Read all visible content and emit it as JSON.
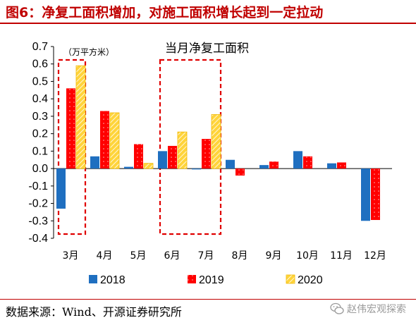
{
  "figure": {
    "title": "图6：净复工面积增加，对施工面积增长起到一定拉动",
    "source": "数据来源：Wind、开源证券研究所",
    "watermark": "赵伟宏观探索",
    "watermark_icon": "wechat-icon"
  },
  "chart_data": {
    "type": "bar",
    "title": "",
    "annotation": "当月净复工面积",
    "unit_label": "（万平方米）",
    "xlabel": "",
    "ylabel": "",
    "categories": [
      "3月",
      "4月",
      "5月",
      "6月",
      "7月",
      "8月",
      "9月",
      "10月",
      "11月",
      "12月"
    ],
    "series": [
      {
        "name": "2018",
        "color": "#1f6fc0",
        "pattern": "solid",
        "values": [
          -0.23,
          0.07,
          0.01,
          0.1,
          -0.005,
          0.05,
          0.02,
          0.1,
          0.03,
          -0.3
        ]
      },
      {
        "name": "2019",
        "color": "#ff0000",
        "pattern": "dotted",
        "values": [
          0.46,
          0.33,
          0.14,
          0.13,
          0.17,
          -0.04,
          0.04,
          0.07,
          0.035,
          -0.295
        ]
      },
      {
        "name": "2020",
        "color": "#ffd43b",
        "pattern": "hatched",
        "values": [
          0.59,
          0.32,
          0.03,
          0.21,
          0.31,
          null,
          null,
          null,
          null,
          null
        ]
      }
    ],
    "ylim": [
      -0.4,
      0.7
    ],
    "yticks": [
      "0.7",
      "0.6",
      "0.5",
      "0.4",
      "0.3",
      "0.2",
      "0.1",
      "0.0",
      "-0.1",
      "-0.2",
      "-0.3",
      "-0.4"
    ],
    "highlight_boxes": [
      {
        "categories": [
          "3月"
        ],
        "color": "#e00000",
        "style": "dashed"
      },
      {
        "categories": [
          "6月",
          "7月"
        ],
        "color": "#e00000",
        "style": "dashed"
      }
    ],
    "grid": false,
    "legend": "bottom"
  }
}
